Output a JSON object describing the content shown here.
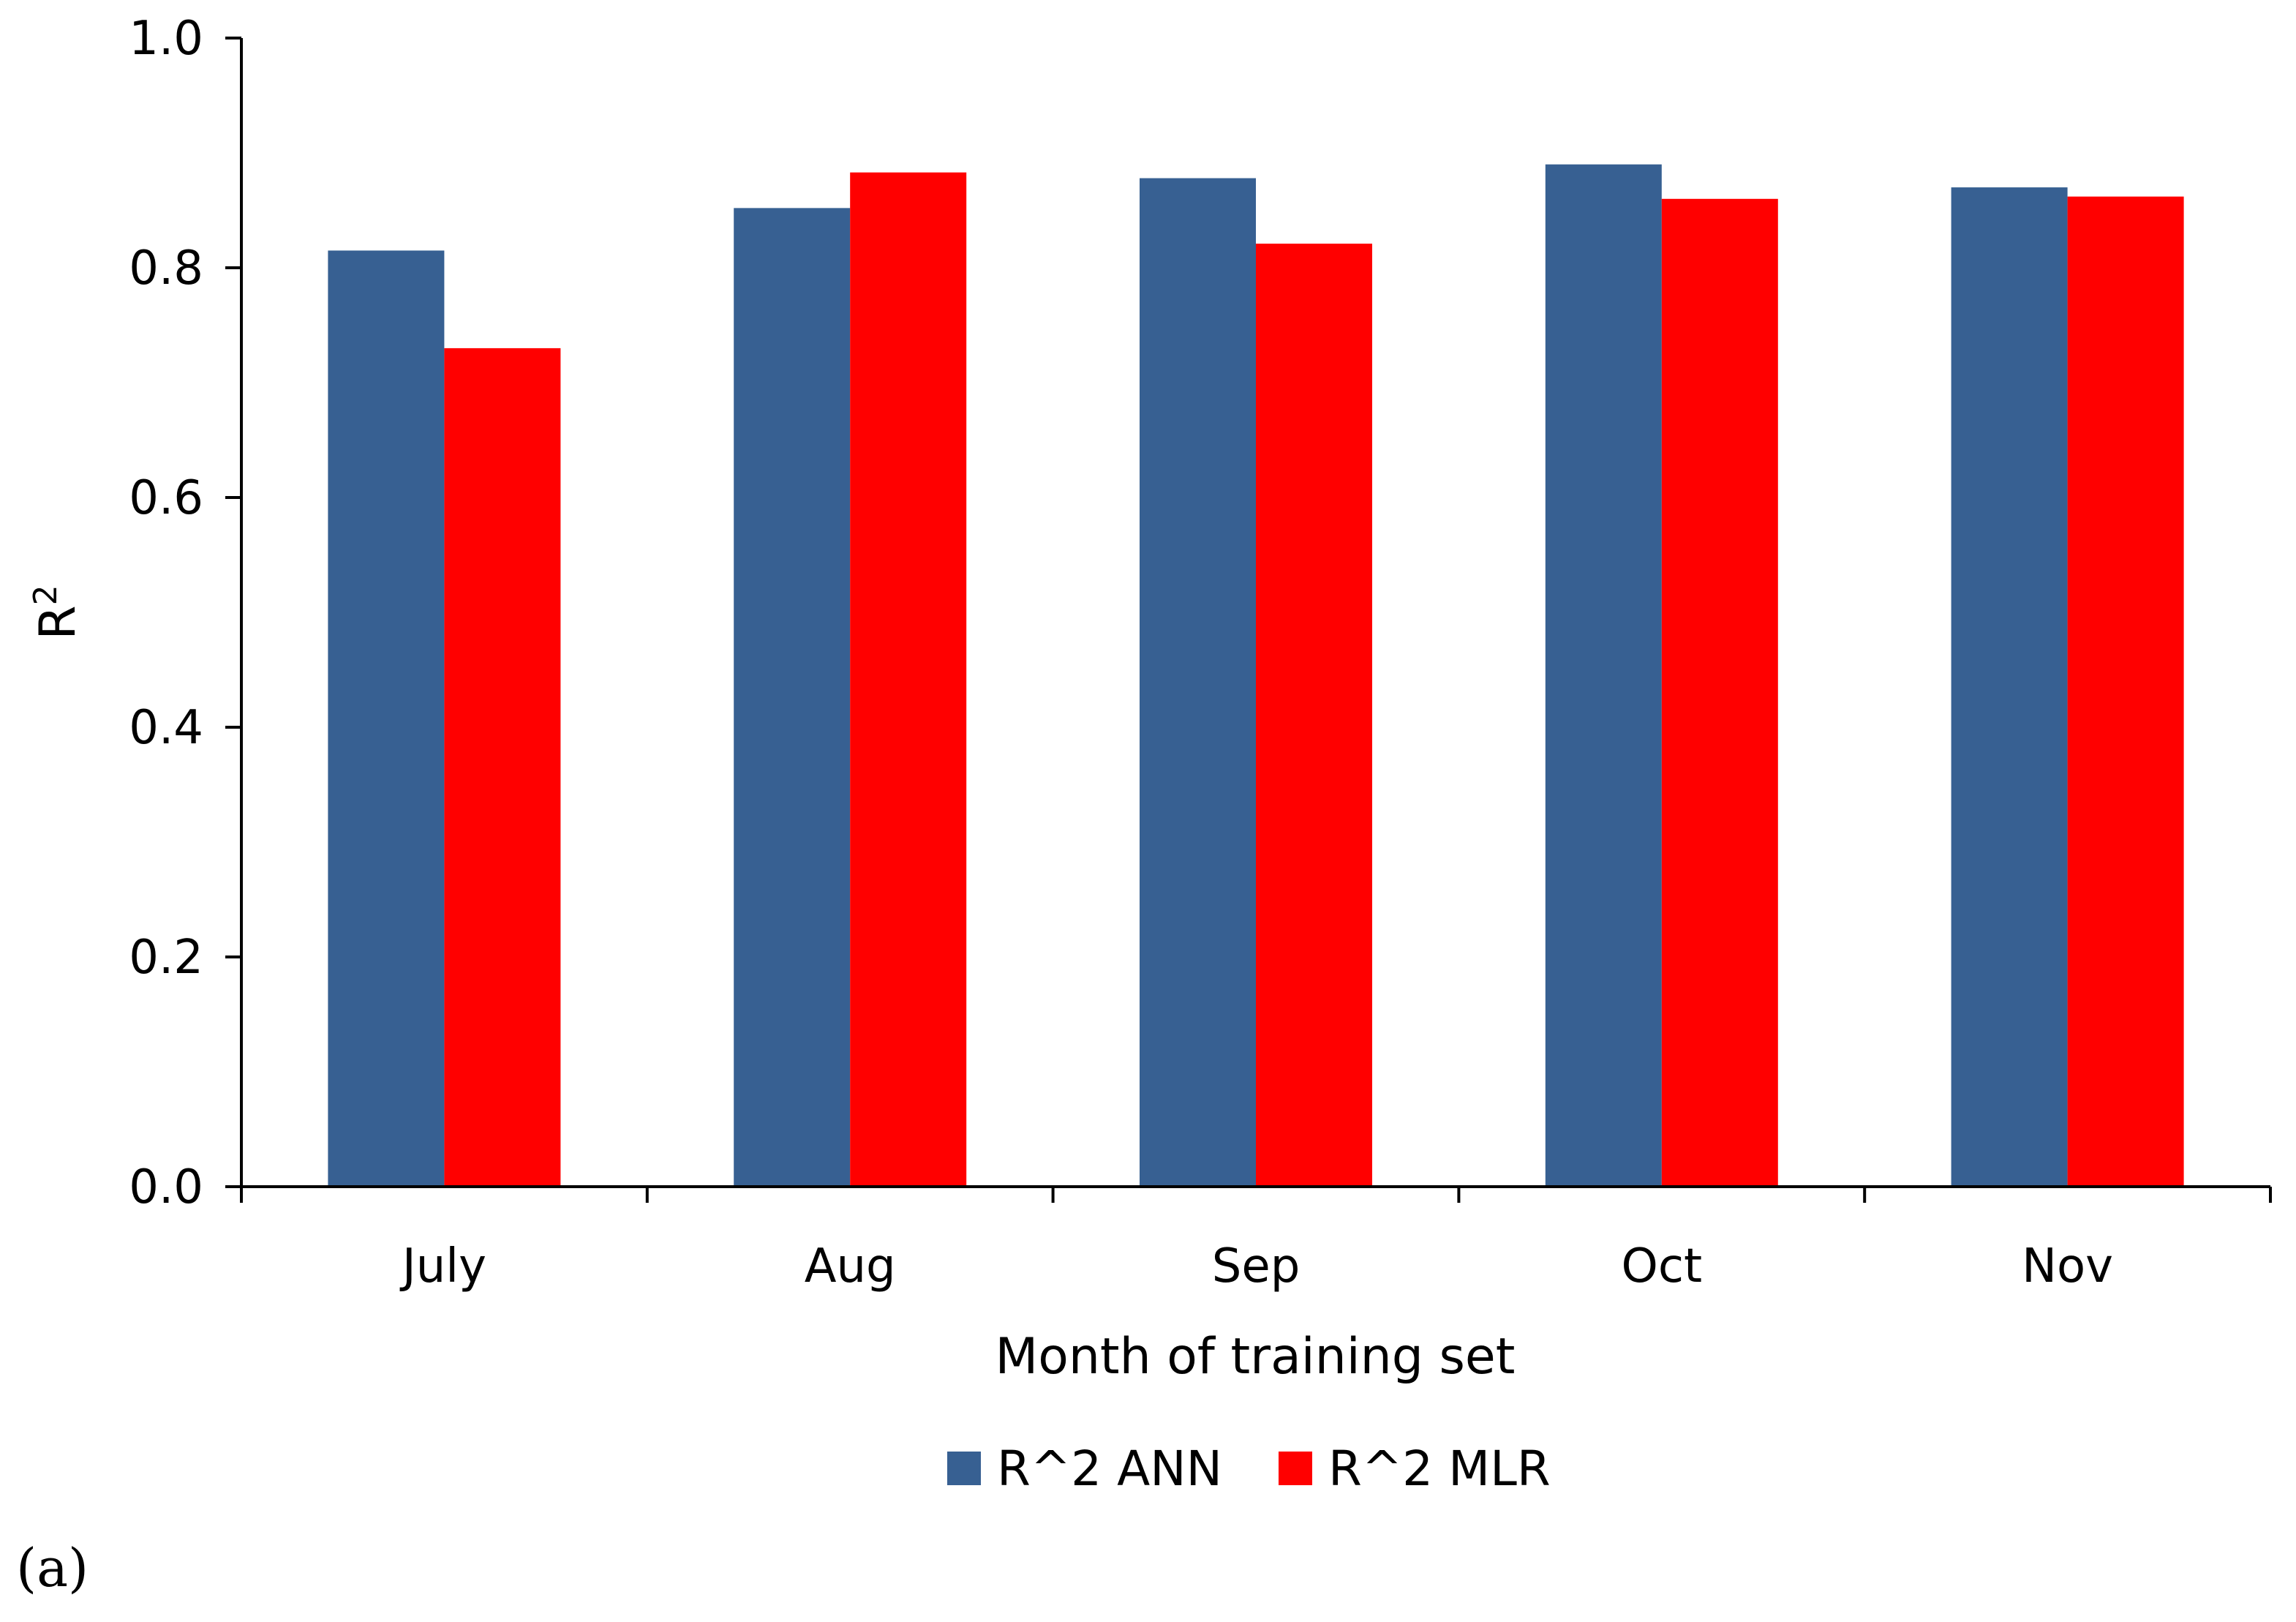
{
  "chart_data": {
    "type": "bar",
    "title": "",
    "categories": [
      "July",
      "Aug",
      "Sep",
      "Oct",
      "Nov"
    ],
    "series": [
      {
        "name": "R^2 ANN",
        "color": "#376092",
        "values": [
          0.815,
          0.852,
          0.878,
          0.89,
          0.87
        ]
      },
      {
        "name": "R^2 MLR",
        "color": "#FF0000",
        "values": [
          0.73,
          0.883,
          0.821,
          0.86,
          0.862
        ]
      }
    ],
    "xlabel": "Month of training set",
    "ylabel": "R",
    "ylabel_superscript": "2",
    "ylim": [
      0,
      1.0
    ],
    "yticks": [
      "0.0",
      "0.2",
      "0.4",
      "0.6",
      "0.8",
      "1.0"
    ],
    "grid": false,
    "legend": "bottom-center"
  },
  "panel_label": "(a)"
}
